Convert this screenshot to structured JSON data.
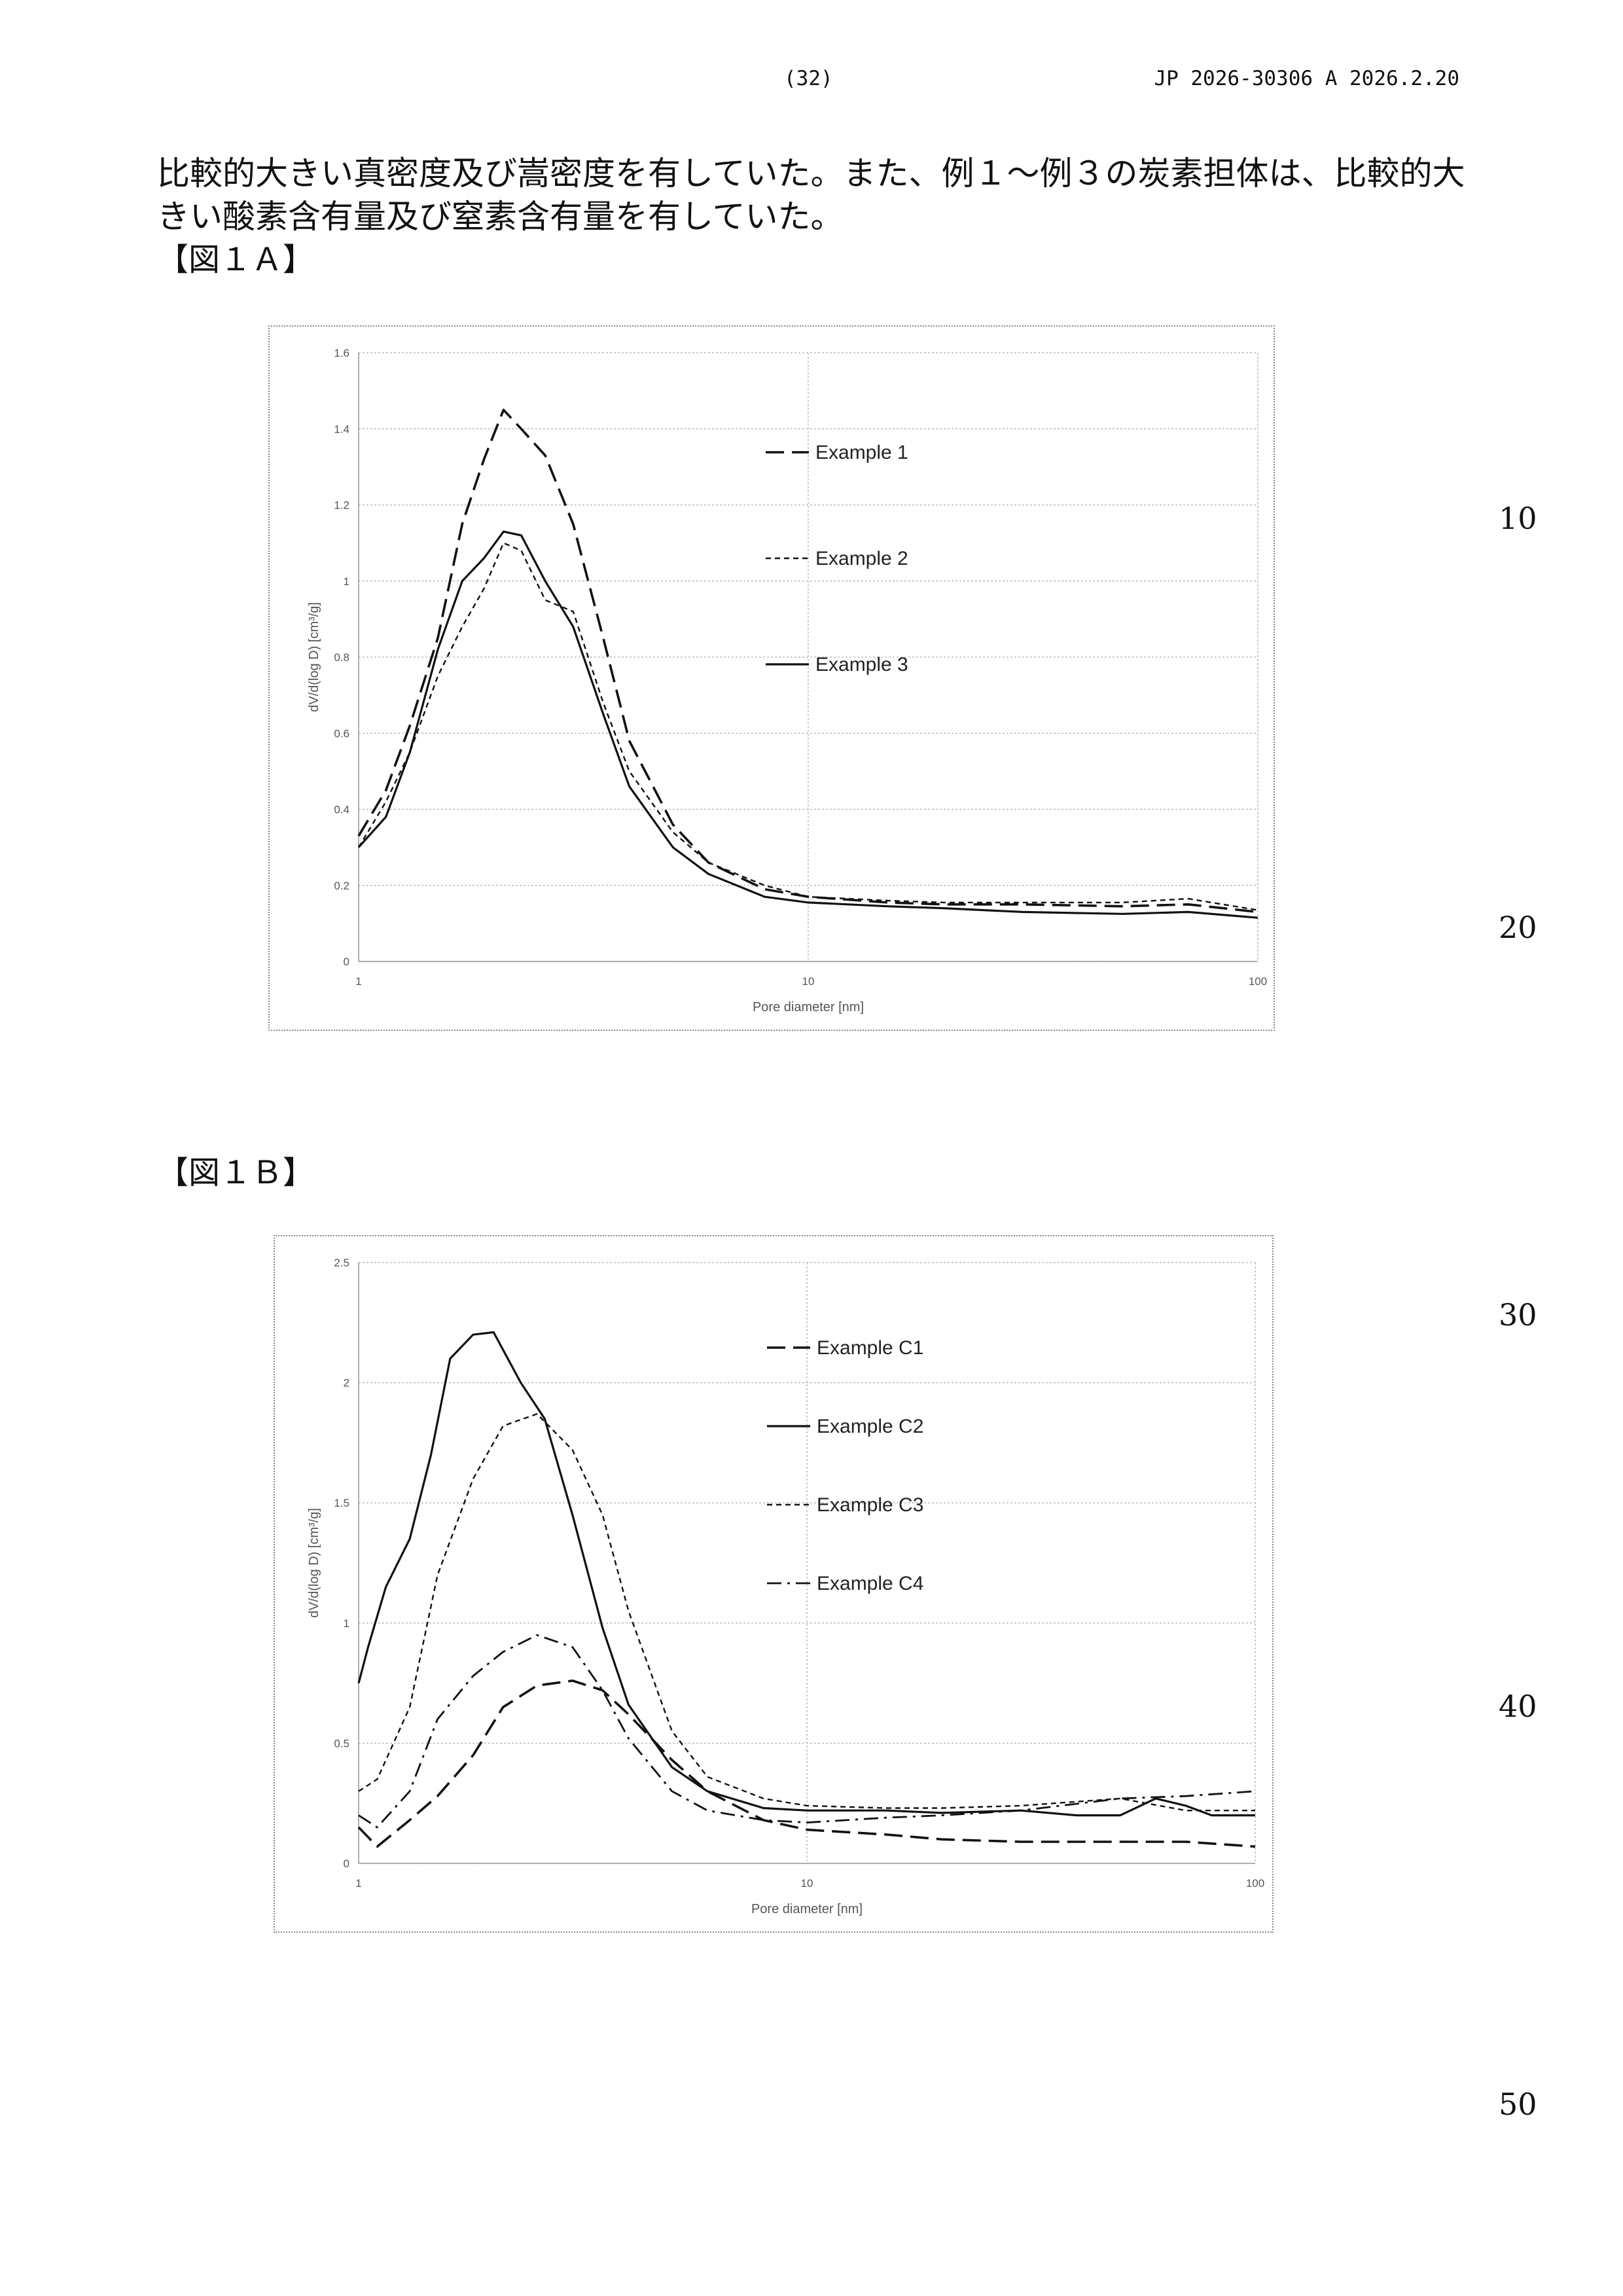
{
  "header": {
    "page_number": "(32)",
    "publication": "JP  2026-30306  A  2026.2.20"
  },
  "body_text": "比較的大きい真密度及び嵩密度を有していた。また、例１～例３の炭素担体は、比較的大\nきい酸素含有量及び窒素含有量を有していた。",
  "figure_captions": {
    "fig1a": "【図１Ａ】",
    "fig1b": "【図１Ｂ】"
  },
  "line_numbers": [
    "10",
    "20",
    "30",
    "40",
    "50"
  ],
  "chart_data": [
    {
      "type": "line",
      "xscale": "log",
      "xlim": [
        1,
        100
      ],
      "ylim": [
        0,
        1.6
      ],
      "xticks": [
        "1",
        "10",
        "100"
      ],
      "yticks": [
        "0",
        "0.2",
        "0.4",
        "0.6",
        "0.8",
        "1",
        "1.2",
        "1.4",
        "1.6"
      ],
      "xlabel": "Pore diameter [nm]",
      "ylabel": "dV/d(log D) [cm³/g]",
      "grid": true,
      "legend_position": "right",
      "series": [
        {
          "name": "Example 1",
          "style": "long-dash",
          "x": [
            1,
            1.15,
            1.3,
            1.5,
            1.7,
            1.9,
            2.1,
            2.3,
            2.6,
            3.0,
            3.5,
            4.0,
            5.0,
            6.0,
            8.0,
            10,
            15,
            20,
            30,
            50,
            70,
            100
          ],
          "y": [
            0.33,
            0.45,
            0.62,
            0.85,
            1.15,
            1.32,
            1.45,
            1.4,
            1.33,
            1.15,
            0.85,
            0.58,
            0.36,
            0.26,
            0.19,
            0.17,
            0.155,
            0.15,
            0.15,
            0.145,
            0.15,
            0.13
          ]
        },
        {
          "name": "Example 2",
          "style": "short-dash",
          "x": [
            1,
            1.15,
            1.3,
            1.5,
            1.7,
            1.9,
            2.1,
            2.3,
            2.6,
            3.0,
            3.5,
            4.0,
            5.0,
            6.0,
            8.0,
            10,
            15,
            20,
            30,
            50,
            70,
            100
          ],
          "y": [
            0.3,
            0.42,
            0.55,
            0.75,
            0.88,
            0.98,
            1.1,
            1.08,
            0.95,
            0.92,
            0.68,
            0.5,
            0.34,
            0.26,
            0.2,
            0.17,
            0.16,
            0.155,
            0.155,
            0.155,
            0.165,
            0.135
          ]
        },
        {
          "name": "Example 3",
          "style": "solid",
          "x": [
            1,
            1.15,
            1.3,
            1.5,
            1.7,
            1.9,
            2.1,
            2.3,
            2.6,
            3.0,
            3.5,
            4.0,
            5.0,
            6.0,
            8.0,
            10,
            15,
            20,
            30,
            50,
            70,
            100
          ],
          "y": [
            0.3,
            0.38,
            0.55,
            0.82,
            1.0,
            1.06,
            1.13,
            1.12,
            1.0,
            0.88,
            0.65,
            0.46,
            0.3,
            0.23,
            0.17,
            0.155,
            0.145,
            0.14,
            0.13,
            0.125,
            0.13,
            0.115
          ]
        }
      ]
    },
    {
      "type": "line",
      "xscale": "log",
      "xlim": [
        1,
        100
      ],
      "ylim": [
        0,
        2.5
      ],
      "xticks": [
        "1",
        "10",
        "100"
      ],
      "yticks": [
        "0",
        "0.5",
        "1",
        "1.5",
        "2",
        "2.5"
      ],
      "xlabel": "Pore diameter [nm]",
      "ylabel": "dV/d(log D) [cm³/g]",
      "grid": true,
      "legend_position": "right",
      "series": [
        {
          "name": "Example C1",
          "style": "long-dash",
          "x": [
            1,
            1.1,
            1.3,
            1.5,
            1.8,
            2.1,
            2.5,
            3.0,
            3.5,
            4.0,
            5.0,
            6.0,
            8.0,
            10,
            15,
            20,
            30,
            50,
            70,
            100
          ],
          "y": [
            0.15,
            0.07,
            0.18,
            0.28,
            0.45,
            0.65,
            0.74,
            0.76,
            0.72,
            0.62,
            0.43,
            0.3,
            0.18,
            0.14,
            0.12,
            0.1,
            0.09,
            0.09,
            0.09,
            0.07
          ]
        },
        {
          "name": "Example C2",
          "style": "solid",
          "x": [
            1,
            1.05,
            1.15,
            1.3,
            1.45,
            1.6,
            1.8,
            2.0,
            2.3,
            2.6,
            3.0,
            3.5,
            4.0,
            5.0,
            6.0,
            8.0,
            10,
            15,
            20,
            30,
            40,
            50,
            60,
            70,
            80,
            100
          ],
          "y": [
            0.75,
            0.9,
            1.15,
            1.35,
            1.7,
            2.1,
            2.2,
            2.21,
            2.0,
            1.85,
            1.45,
            0.98,
            0.66,
            0.4,
            0.3,
            0.23,
            0.22,
            0.22,
            0.21,
            0.22,
            0.2,
            0.2,
            0.27,
            0.24,
            0.2,
            0.2
          ]
        },
        {
          "name": "Example C3",
          "style": "short-dash",
          "x": [
            1,
            1.1,
            1.3,
            1.5,
            1.8,
            2.1,
            2.5,
            3.0,
            3.5,
            4.0,
            5.0,
            6.0,
            8.0,
            10,
            15,
            20,
            30,
            50,
            70,
            100
          ],
          "y": [
            0.3,
            0.35,
            0.65,
            1.2,
            1.6,
            1.82,
            1.87,
            1.72,
            1.45,
            1.05,
            0.55,
            0.36,
            0.27,
            0.24,
            0.23,
            0.23,
            0.24,
            0.27,
            0.22,
            0.22
          ]
        },
        {
          "name": "Example C4",
          "style": "dash-dot",
          "x": [
            1,
            1.1,
            1.3,
            1.5,
            1.8,
            2.1,
            2.5,
            3.0,
            3.5,
            4.0,
            5.0,
            6.0,
            8.0,
            10,
            15,
            20,
            30,
            50,
            70,
            100
          ],
          "y": [
            0.2,
            0.15,
            0.3,
            0.6,
            0.78,
            0.88,
            0.95,
            0.9,
            0.72,
            0.52,
            0.3,
            0.22,
            0.18,
            0.17,
            0.19,
            0.2,
            0.22,
            0.27,
            0.28,
            0.3
          ]
        }
      ]
    }
  ]
}
